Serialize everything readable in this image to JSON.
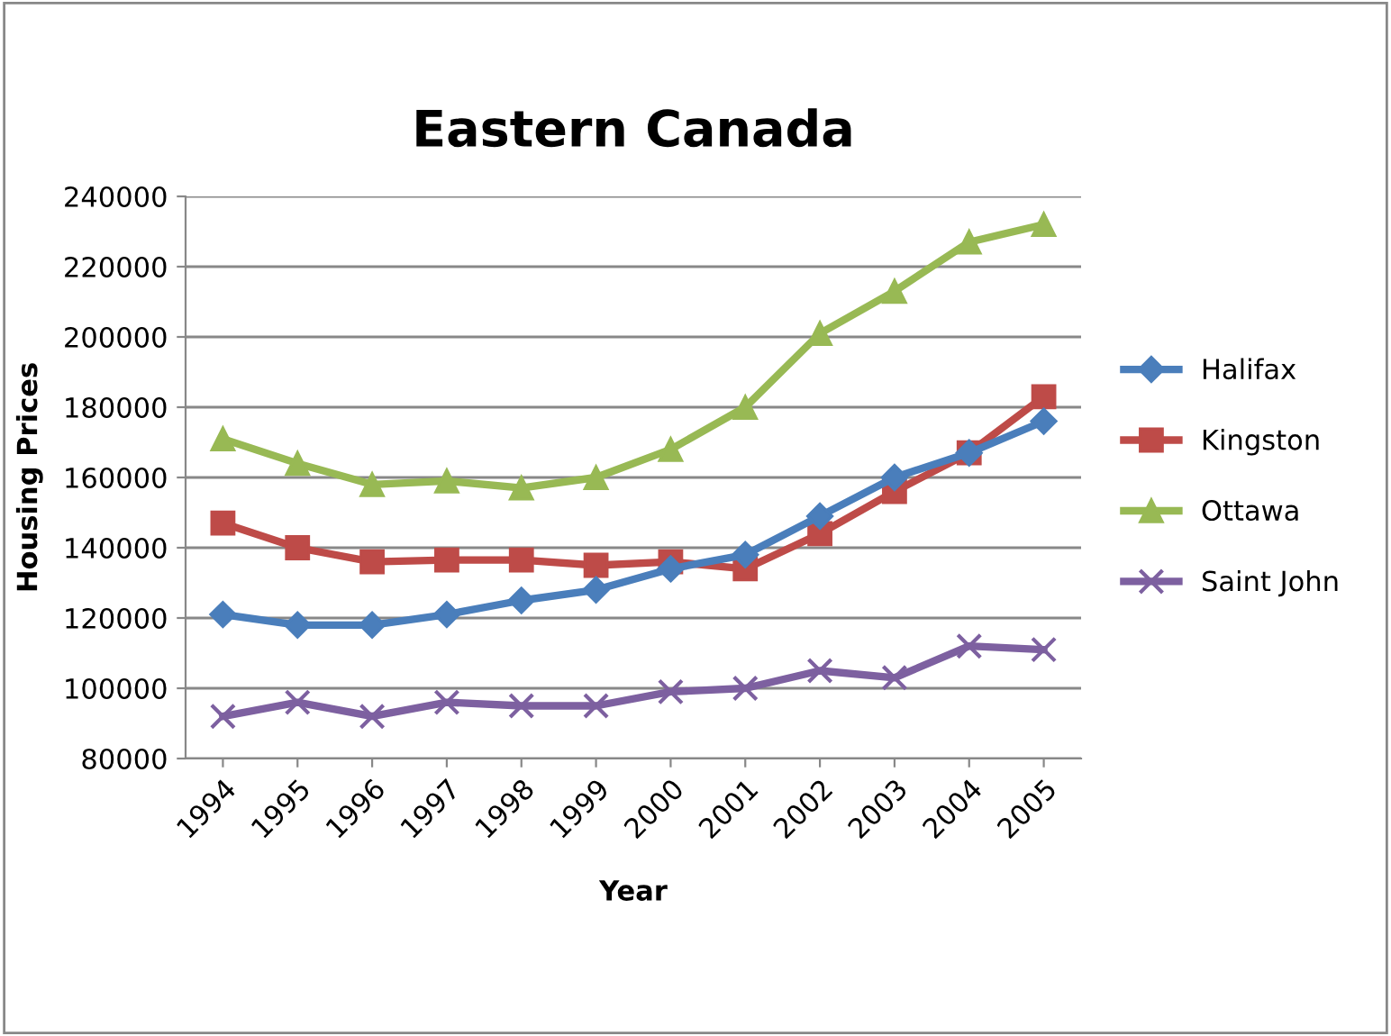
{
  "chart_data": {
    "type": "line",
    "title": "Eastern Canada",
    "xlabel": "Year",
    "ylabel": "Housing Prices",
    "categories": [
      "1994",
      "1995",
      "1996",
      "1997",
      "1998",
      "1999",
      "2000",
      "2001",
      "2002",
      "2003",
      "2004",
      "2005"
    ],
    "series": [
      {
        "name": "Halifax",
        "color": "#4a7ebb",
        "marker": "diamond",
        "values": [
          121000,
          118000,
          118000,
          121000,
          125000,
          128000,
          134000,
          138000,
          149000,
          160000,
          167000,
          176000
        ]
      },
      {
        "name": "Kingston",
        "color": "#be4b48",
        "marker": "square",
        "values": [
          147000,
          140000,
          136000,
          136500,
          136500,
          135000,
          136000,
          134000,
          144000,
          156000,
          167000,
          183000
        ]
      },
      {
        "name": "Ottawa",
        "color": "#98b954",
        "marker": "triangle",
        "values": [
          171000,
          164000,
          158000,
          159000,
          157000,
          160000,
          168000,
          180000,
          201000,
          213000,
          227000,
          232000
        ]
      },
      {
        "name": "Saint John",
        "color": "#7d60a0",
        "marker": "cross",
        "values": [
          92000,
          96000,
          92000,
          96000,
          95000,
          95000,
          99000,
          100000,
          105000,
          103000,
          112000,
          111000
        ]
      }
    ],
    "ylim": [
      80000,
      240000
    ],
    "yticks": [
      80000,
      100000,
      120000,
      140000,
      160000,
      180000,
      200000,
      220000,
      240000
    ],
    "grid": "y",
    "legend": "right"
  }
}
